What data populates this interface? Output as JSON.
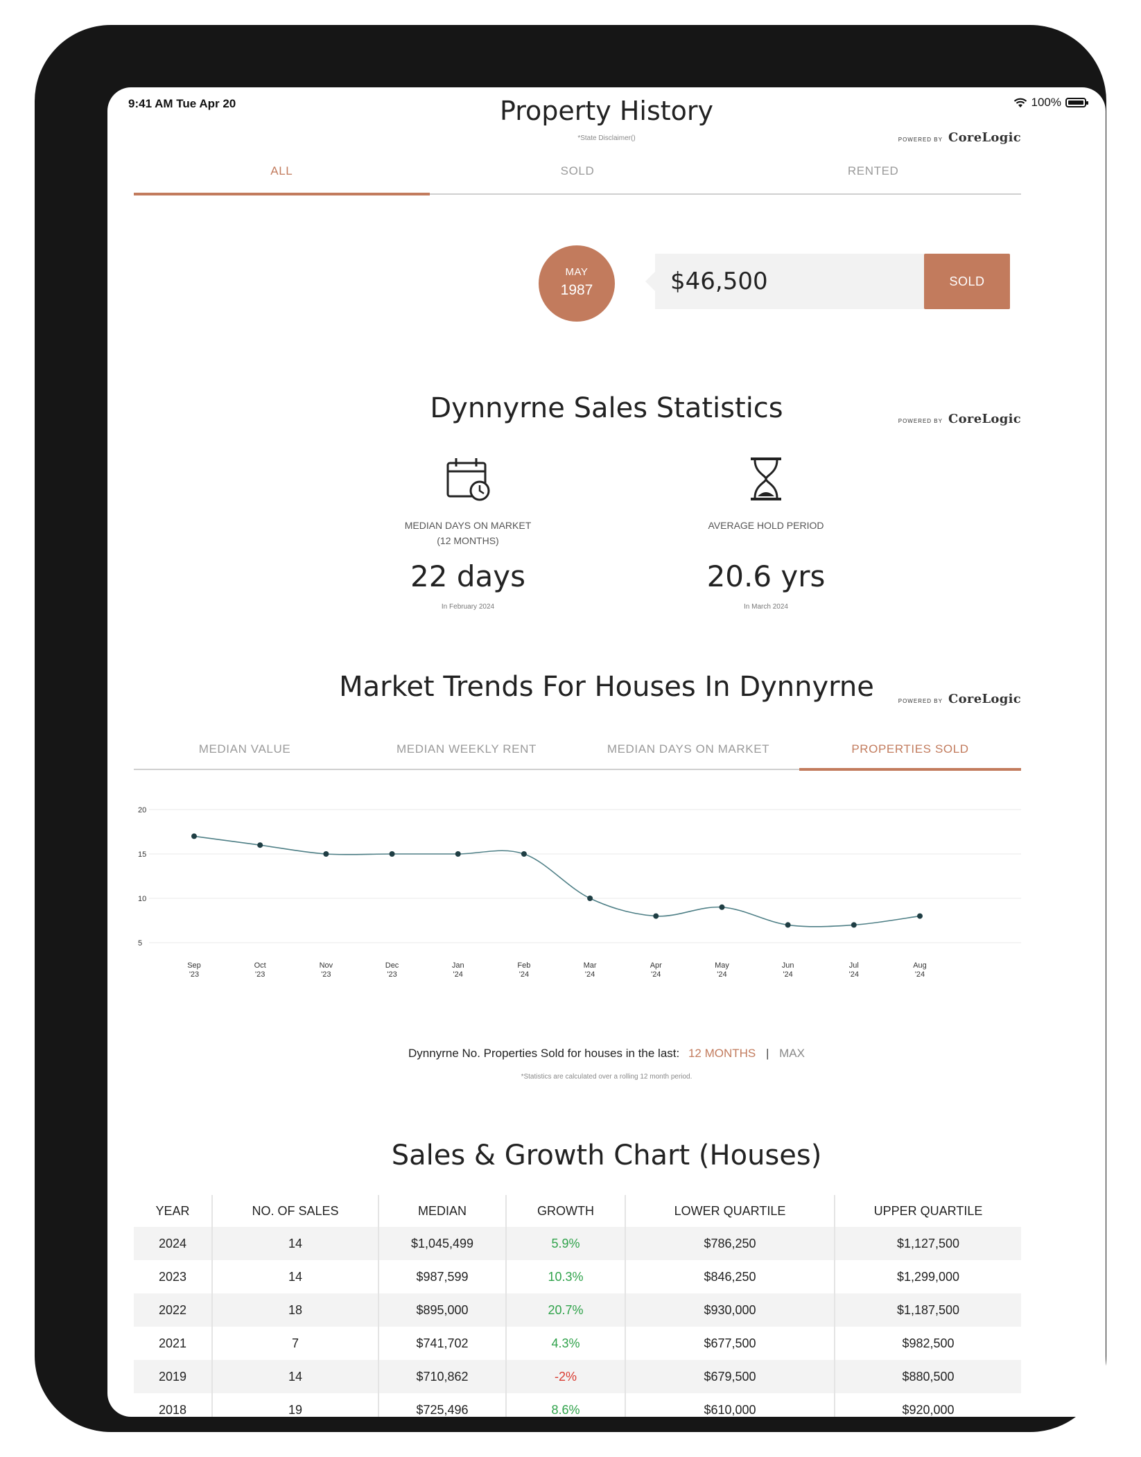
{
  "status_bar": {
    "time": "9:41 AM  Tue Apr 20",
    "battery": "100%"
  },
  "property_history": {
    "title": "Property History",
    "disclaimer": "*State Disclaimer()",
    "powered_by": "POWERED BY",
    "brand": "CoreLogic",
    "tabs": [
      "ALL",
      "SOLD",
      "RENTED"
    ],
    "active_tab": "ALL",
    "event": {
      "month": "MAY",
      "year": "1987",
      "price": "$46,500",
      "status": "SOLD"
    }
  },
  "sales_statistics": {
    "title": "Dynnyrne Sales Statistics",
    "powered_by": "POWERED BY",
    "brand": "CoreLogic",
    "median_days": {
      "icon": "calendar-clock-icon",
      "label_line1": "MEDIAN DAYS ON MARKET",
      "label_line2": "(12 MONTHS)",
      "value": "22 days",
      "sub": "In February 2024"
    },
    "hold_period": {
      "icon": "hourglass-icon",
      "label": "AVERAGE HOLD PERIOD",
      "value": "20.6 yrs",
      "sub": "In March 2024"
    }
  },
  "market_trends": {
    "title": "Market Trends For Houses In Dynnyrne",
    "powered_by": "POWERED BY",
    "brand": "CoreLogic",
    "tabs": [
      "MEDIAN VALUE",
      "MEDIAN WEEKLY RENT",
      "MEDIAN DAYS ON MARKET",
      "PROPERTIES SOLD"
    ],
    "active_tab": "PROPERTIES SOLD",
    "legend_prefix": "Dynnyrne No. Properties Sold for houses in the last:",
    "period_options": [
      "12 MONTHS",
      "MAX"
    ],
    "footnote": "*Statistics are calculated over a rolling 12 month period."
  },
  "chart_data": {
    "type": "line",
    "title": "",
    "xlabel": "",
    "ylabel": "",
    "x": [
      "Sep '23",
      "Oct '23",
      "Nov '23",
      "Dec '23",
      "Jan '24",
      "Feb '24",
      "Mar '24",
      "Apr '24",
      "May '24",
      "Jun '24",
      "Jul '24",
      "Aug '24"
    ],
    "x_top": [
      "Sep",
      "Oct",
      "Nov",
      "Dec",
      "Jan",
      "Feb",
      "Mar",
      "Apr",
      "May",
      "Jun",
      "Jul",
      "Aug"
    ],
    "x_bottom": [
      "'23",
      "'23",
      "'23",
      "'23",
      "'24",
      "'24",
      "'24",
      "'24",
      "'24",
      "'24",
      "'24",
      "'24"
    ],
    "series": [
      {
        "values": [
          17,
          16,
          15,
          15,
          15,
          15,
          10,
          8,
          9,
          7,
          7,
          8
        ]
      }
    ],
    "yticks": [
      20,
      15,
      10,
      5
    ],
    "ylim": [
      5,
      20
    ],
    "grid": true,
    "line_color": "#4e7f86",
    "point_color": "#1f3e44"
  },
  "sales_growth": {
    "title": "Sales & Growth Chart (Houses)",
    "columns": [
      "YEAR",
      "NO. OF SALES",
      "MEDIAN",
      "GROWTH",
      "LOWER QUARTILE",
      "UPPER QUARTILE"
    ],
    "rows": [
      {
        "year": "2024",
        "sales": "14",
        "median": "$1,045,499",
        "growth": "5.9%",
        "trend": "pos",
        "lower": "$786,250",
        "upper": "$1,127,500"
      },
      {
        "year": "2023",
        "sales": "14",
        "median": "$987,599",
        "growth": "10.3%",
        "trend": "pos",
        "lower": "$846,250",
        "upper": "$1,299,000"
      },
      {
        "year": "2022",
        "sales": "18",
        "median": "$895,000",
        "growth": "20.7%",
        "trend": "pos",
        "lower": "$930,000",
        "upper": "$1,187,500"
      },
      {
        "year": "2021",
        "sales": "7",
        "median": "$741,702",
        "growth": "4.3%",
        "trend": "pos",
        "lower": "$677,500",
        "upper": "$982,500"
      },
      {
        "year": "2019",
        "sales": "14",
        "median": "$710,862",
        "growth": "-2%",
        "trend": "neg",
        "lower": "$679,500",
        "upper": "$880,500"
      },
      {
        "year": "2018",
        "sales": "19",
        "median": "$725,496",
        "growth": "8.6%",
        "trend": "pos",
        "lower": "$610,000",
        "upper": "$920,000"
      }
    ]
  },
  "colors": {
    "accent": "#c27b5d",
    "positive": "#2fa24a",
    "negative": "#d93b30",
    "device": "#161616"
  }
}
